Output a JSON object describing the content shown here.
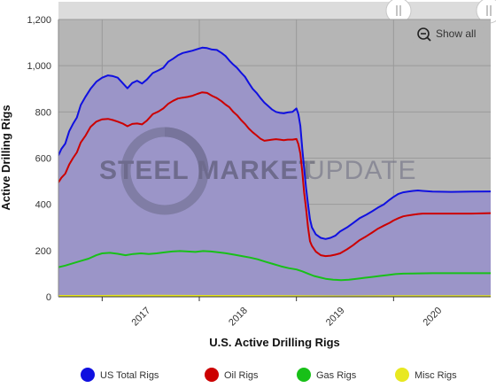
{
  "chart_data": {
    "type": "area",
    "title": "",
    "xlabel": "U.S. Active Drilling Rigs",
    "ylabel": "Active Drilling Rigs",
    "ylim": [
      0,
      1200
    ],
    "y_ticks": [
      "0",
      "200",
      "400",
      "600",
      "800",
      "1,000",
      "1,200"
    ],
    "y_tick_values": [
      0,
      200,
      400,
      600,
      800,
      1000,
      1200
    ],
    "x_ticks": [
      "2017",
      "2018",
      "2019",
      "2020"
    ],
    "x_range": [
      2016.55,
      2021.0
    ],
    "grid": true,
    "legend_position": "bottom",
    "watermark": "STEEL MARKET UPDATE",
    "series": [
      {
        "name": "US Total Rigs",
        "color": "#1010e0",
        "points": [
          [
            2016.55,
            612
          ],
          [
            2016.58,
            640
          ],
          [
            2016.62,
            663
          ],
          [
            2016.66,
            716
          ],
          [
            2016.7,
            748
          ],
          [
            2016.74,
            776
          ],
          [
            2016.78,
            830
          ],
          [
            2016.83,
            867
          ],
          [
            2016.88,
            900
          ],
          [
            2016.94,
            931
          ],
          [
            2017.0,
            948
          ],
          [
            2017.06,
            958
          ],
          [
            2017.11,
            955
          ],
          [
            2017.16,
            948
          ],
          [
            2017.21,
            925
          ],
          [
            2017.26,
            902
          ],
          [
            2017.31,
            925
          ],
          [
            2017.36,
            935
          ],
          [
            2017.41,
            923
          ],
          [
            2017.46,
            940
          ],
          [
            2017.52,
            968
          ],
          [
            2017.58,
            980
          ],
          [
            2017.63,
            991
          ],
          [
            2017.68,
            1017
          ],
          [
            2017.73,
            1030
          ],
          [
            2017.78,
            1045
          ],
          [
            2017.83,
            1055
          ],
          [
            2017.88,
            1060
          ],
          [
            2017.93,
            1065
          ],
          [
            2017.98,
            1072
          ],
          [
            2018.03,
            1078
          ],
          [
            2018.08,
            1076
          ],
          [
            2018.13,
            1070
          ],
          [
            2018.18,
            1068
          ],
          [
            2018.23,
            1055
          ],
          [
            2018.27,
            1042
          ],
          [
            2018.31,
            1022
          ],
          [
            2018.35,
            1005
          ],
          [
            2018.39,
            990
          ],
          [
            2018.43,
            970
          ],
          [
            2018.47,
            952
          ],
          [
            2018.51,
            925
          ],
          [
            2018.55,
            900
          ],
          [
            2018.59,
            882
          ],
          [
            2018.63,
            860
          ],
          [
            2018.67,
            840
          ],
          [
            2018.71,
            825
          ],
          [
            2018.75,
            810
          ],
          [
            2018.79,
            800
          ],
          [
            2018.83,
            796
          ],
          [
            2018.87,
            794
          ],
          [
            2018.91,
            798
          ],
          [
            2018.96,
            800
          ],
          [
            2019.0,
            815
          ],
          [
            2019.02,
            790
          ],
          [
            2019.04,
            740
          ],
          [
            2019.06,
            640
          ],
          [
            2019.08,
            555
          ],
          [
            2019.1,
            470
          ],
          [
            2019.12,
            400
          ],
          [
            2019.14,
            335
          ],
          [
            2019.16,
            300
          ],
          [
            2019.2,
            270
          ],
          [
            2019.25,
            255
          ],
          [
            2019.3,
            250
          ],
          [
            2019.35,
            255
          ],
          [
            2019.4,
            264
          ],
          [
            2019.45,
            283
          ],
          [
            2019.52,
            300
          ],
          [
            2019.58,
            318
          ],
          [
            2019.65,
            340
          ],
          [
            2019.72,
            355
          ],
          [
            2019.78,
            370
          ],
          [
            2019.84,
            386
          ],
          [
            2019.9,
            400
          ],
          [
            2019.96,
            420
          ],
          [
            2020.0,
            432
          ],
          [
            2020.05,
            445
          ],
          [
            2020.1,
            452
          ],
          [
            2020.15,
            455
          ],
          [
            2020.2,
            458
          ],
          [
            2020.25,
            460
          ],
          [
            2020.3,
            458
          ],
          [
            2020.4,
            455
          ],
          [
            2020.6,
            454
          ],
          [
            2020.8,
            455
          ],
          [
            2021.0,
            456
          ]
        ]
      },
      {
        "name": "Oil Rigs",
        "color": "#cc0000",
        "points": [
          [
            2016.55,
            495
          ],
          [
            2016.58,
            515
          ],
          [
            2016.62,
            533
          ],
          [
            2016.66,
            572
          ],
          [
            2016.7,
            600
          ],
          [
            2016.74,
            625
          ],
          [
            2016.78,
            668
          ],
          [
            2016.83,
            698
          ],
          [
            2016.88,
            735
          ],
          [
            2016.94,
            758
          ],
          [
            2017.0,
            768
          ],
          [
            2017.06,
            770
          ],
          [
            2017.11,
            765
          ],
          [
            2017.16,
            758
          ],
          [
            2017.21,
            750
          ],
          [
            2017.26,
            738
          ],
          [
            2017.31,
            748
          ],
          [
            2017.36,
            750
          ],
          [
            2017.41,
            746
          ],
          [
            2017.46,
            762
          ],
          [
            2017.52,
            790
          ],
          [
            2017.58,
            802
          ],
          [
            2017.63,
            815
          ],
          [
            2017.68,
            835
          ],
          [
            2017.73,
            848
          ],
          [
            2017.78,
            858
          ],
          [
            2017.83,
            862
          ],
          [
            2017.88,
            865
          ],
          [
            2017.93,
            870
          ],
          [
            2017.98,
            878
          ],
          [
            2018.03,
            885
          ],
          [
            2018.08,
            882
          ],
          [
            2018.13,
            870
          ],
          [
            2018.18,
            860
          ],
          [
            2018.23,
            846
          ],
          [
            2018.27,
            832
          ],
          [
            2018.31,
            820
          ],
          [
            2018.35,
            800
          ],
          [
            2018.39,
            785
          ],
          [
            2018.43,
            765
          ],
          [
            2018.47,
            748
          ],
          [
            2018.51,
            728
          ],
          [
            2018.55,
            712
          ],
          [
            2018.59,
            698
          ],
          [
            2018.63,
            684
          ],
          [
            2018.67,
            675
          ],
          [
            2018.71,
            678
          ],
          [
            2018.75,
            680
          ],
          [
            2018.79,
            682
          ],
          [
            2018.83,
            680
          ],
          [
            2018.87,
            678
          ],
          [
            2018.91,
            680
          ],
          [
            2018.96,
            680
          ],
          [
            2019.0,
            683
          ],
          [
            2019.02,
            660
          ],
          [
            2019.04,
            620
          ],
          [
            2019.06,
            540
          ],
          [
            2019.08,
            450
          ],
          [
            2019.1,
            380
          ],
          [
            2019.12,
            300
          ],
          [
            2019.14,
            240
          ],
          [
            2019.16,
            220
          ],
          [
            2019.2,
            195
          ],
          [
            2019.25,
            180
          ],
          [
            2019.3,
            176
          ],
          [
            2019.35,
            178
          ],
          [
            2019.4,
            182
          ],
          [
            2019.45,
            188
          ],
          [
            2019.52,
            205
          ],
          [
            2019.58,
            222
          ],
          [
            2019.65,
            245
          ],
          [
            2019.72,
            262
          ],
          [
            2019.78,
            278
          ],
          [
            2019.84,
            295
          ],
          [
            2019.9,
            308
          ],
          [
            2019.96,
            320
          ],
          [
            2020.0,
            330
          ],
          [
            2020.05,
            340
          ],
          [
            2020.1,
            348
          ],
          [
            2020.15,
            352
          ],
          [
            2020.2,
            355
          ],
          [
            2020.25,
            358
          ],
          [
            2020.3,
            360
          ],
          [
            2020.5,
            360
          ],
          [
            2020.8,
            360
          ],
          [
            2021.0,
            362
          ]
        ]
      },
      {
        "name": "Gas Rigs",
        "color": "#18c018",
        "points": [
          [
            2016.55,
            128
          ],
          [
            2016.62,
            135
          ],
          [
            2016.7,
            145
          ],
          [
            2016.78,
            155
          ],
          [
            2016.86,
            165
          ],
          [
            2016.94,
            180
          ],
          [
            2017.0,
            188
          ],
          [
            2017.08,
            190
          ],
          [
            2017.16,
            186
          ],
          [
            2017.24,
            180
          ],
          [
            2017.32,
            185
          ],
          [
            2017.4,
            188
          ],
          [
            2017.48,
            185
          ],
          [
            2017.56,
            188
          ],
          [
            2017.64,
            192
          ],
          [
            2017.72,
            196
          ],
          [
            2017.8,
            198
          ],
          [
            2017.88,
            196
          ],
          [
            2017.96,
            194
          ],
          [
            2018.04,
            198
          ],
          [
            2018.12,
            196
          ],
          [
            2018.2,
            192
          ],
          [
            2018.28,
            188
          ],
          [
            2018.36,
            182
          ],
          [
            2018.44,
            176
          ],
          [
            2018.52,
            170
          ],
          [
            2018.6,
            162
          ],
          [
            2018.68,
            152
          ],
          [
            2018.76,
            142
          ],
          [
            2018.84,
            132
          ],
          [
            2018.92,
            124
          ],
          [
            2019.0,
            118
          ],
          [
            2019.06,
            110
          ],
          [
            2019.12,
            100
          ],
          [
            2019.18,
            90
          ],
          [
            2019.24,
            84
          ],
          [
            2019.3,
            78
          ],
          [
            2019.38,
            74
          ],
          [
            2019.46,
            72
          ],
          [
            2019.54,
            74
          ],
          [
            2019.62,
            78
          ],
          [
            2019.7,
            82
          ],
          [
            2019.78,
            86
          ],
          [
            2019.86,
            90
          ],
          [
            2019.94,
            94
          ],
          [
            2020.02,
            98
          ],
          [
            2020.1,
            100
          ],
          [
            2020.2,
            101
          ],
          [
            2020.4,
            102
          ],
          [
            2020.7,
            102
          ],
          [
            2021.0,
            102
          ]
        ]
      },
      {
        "name": "Misc Rigs",
        "color": "#e8e820",
        "points": [
          [
            2016.55,
            4
          ],
          [
            2017.0,
            4
          ],
          [
            2017.5,
            5
          ],
          [
            2018.0,
            4
          ],
          [
            2018.5,
            4
          ],
          [
            2019.0,
            3
          ],
          [
            2019.5,
            2
          ],
          [
            2020.0,
            3
          ],
          [
            2020.5,
            3
          ],
          [
            2021.0,
            3
          ]
        ]
      }
    ]
  },
  "toolbar": {
    "show_all_label": "Show all",
    "zoom_icon": "zoom-out-icon",
    "scrollbar_handle_icon": "grip-handle-icon"
  },
  "colors": {
    "plot_background": "#b5b5b5",
    "area_fill": "#9b95c8",
    "navigator": "#dcdcdc"
  }
}
